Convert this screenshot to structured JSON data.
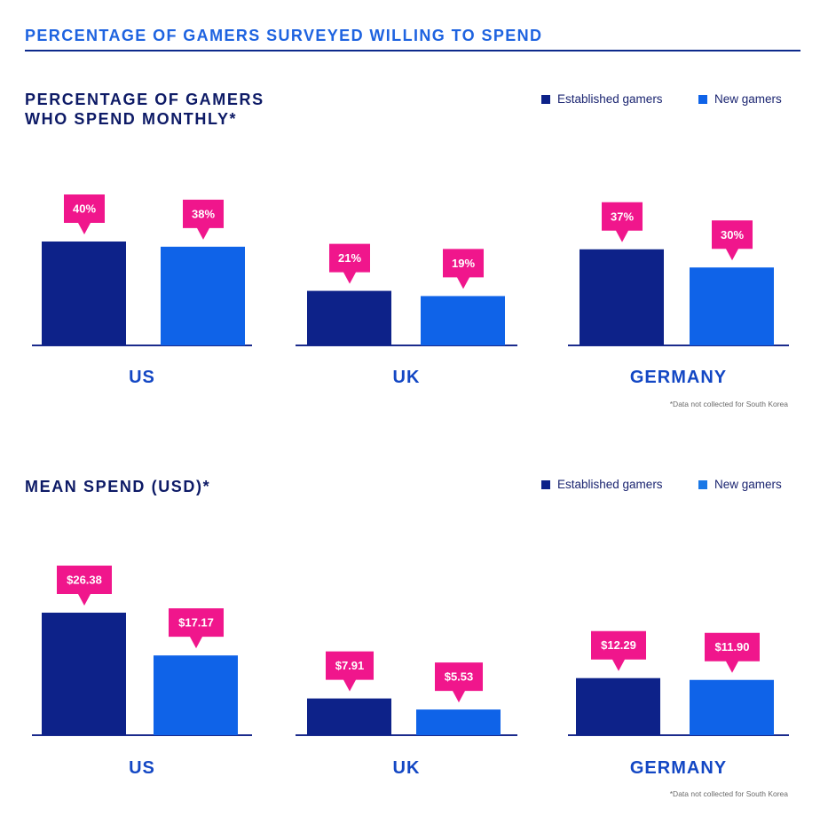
{
  "page_title": "PERCENTAGE OF GAMERS SURVEYED WILLING TO SPEND",
  "colors": {
    "established": "#0d2289",
    "new": "#0f63e8",
    "label_bg": "#f0168c",
    "axis": "#1a2a8c",
    "country_label": "#1347c4"
  },
  "chart_data": [
    {
      "type": "bar",
      "title": "PERCENTAGE OF GAMERS\nWHO SPEND MONTHLY*",
      "title_lines": [
        "PERCENTAGE OF GAMERS",
        "WHO SPEND MONTHLY*"
      ],
      "categories": [
        "US",
        "UK",
        "GERMANY"
      ],
      "series": [
        {
          "name": "Established gamers",
          "values": [
            40,
            21,
            37
          ],
          "labels": [
            "40%",
            "21%",
            "37%"
          ]
        },
        {
          "name": "New gamers",
          "values": [
            38,
            19,
            30
          ],
          "labels": [
            "38%",
            "19%",
            "30%"
          ]
        }
      ],
      "unit": "%",
      "ylim": [
        0,
        40
      ],
      "legend": "top-right",
      "grid": false,
      "footnote": "*Data not collected for South Korea"
    },
    {
      "type": "bar",
      "title": "MEAN SPEND (USD)*",
      "title_lines": [
        "MEAN SPEND (USD)*"
      ],
      "categories": [
        "US",
        "UK",
        "GERMANY"
      ],
      "series": [
        {
          "name": "Established gamers",
          "values": [
            26.38,
            7.91,
            12.29
          ],
          "labels": [
            "$26.38",
            "$7.91",
            "$12.29"
          ]
        },
        {
          "name": "New gamers",
          "values": [
            17.17,
            5.53,
            11.9
          ],
          "labels": [
            "$17.17",
            "$5.53",
            "$11.90"
          ]
        }
      ],
      "unit": "USD",
      "ylim": [
        0,
        26.38
      ],
      "legend": "top-right",
      "grid": false,
      "footnote": "*Data not collected for South Korea"
    }
  ]
}
